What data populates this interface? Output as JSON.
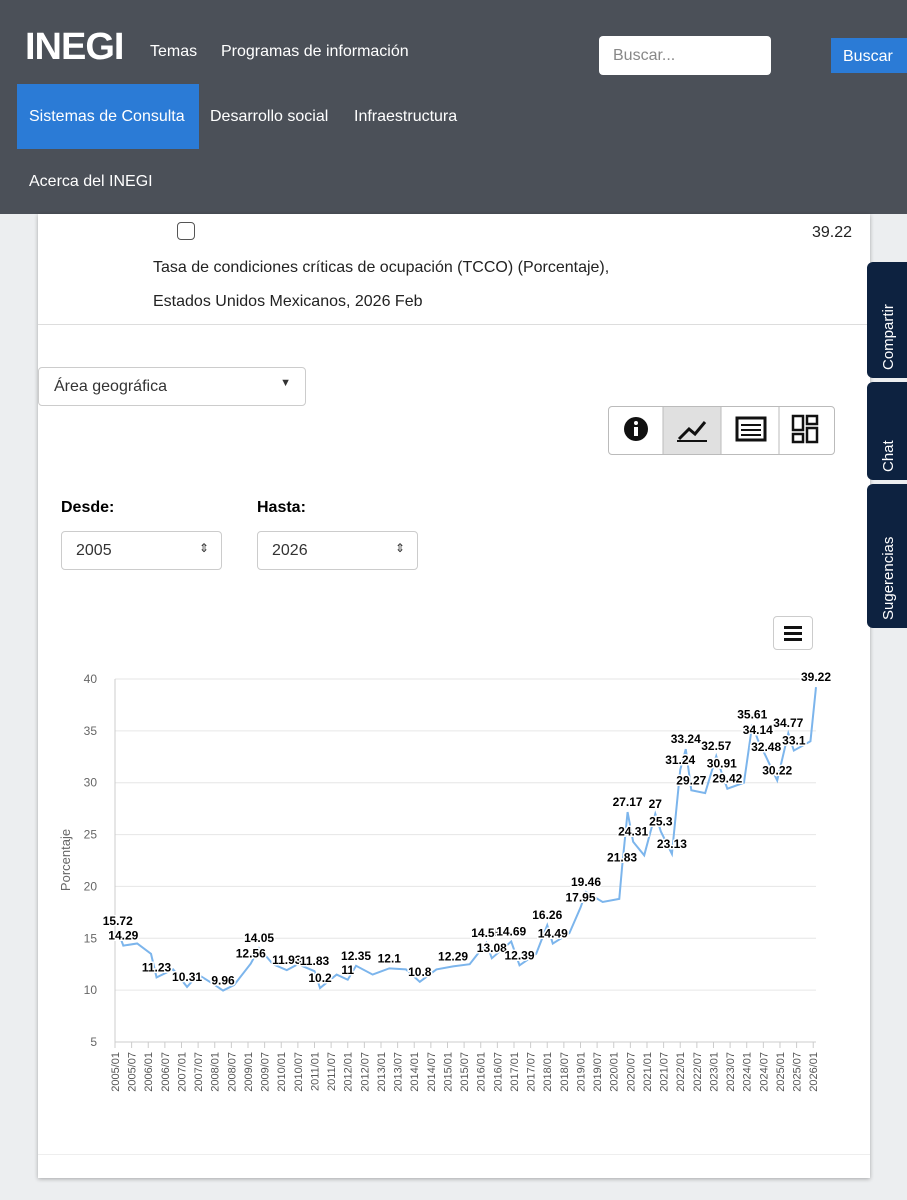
{
  "header": {
    "logo": "INEGI",
    "nav": [
      "Temas",
      "Programas de información",
      "Sistemas de Consulta",
      "Desarrollo social",
      "Infraestructura",
      "Acerca del INEGI"
    ],
    "search_placeholder": "Buscar...",
    "search_button": "Buscar"
  },
  "side_tabs": [
    "Compartir",
    "Chat",
    "Sugerencias"
  ],
  "indicator": {
    "value": "39.22",
    "description": [
      "Tasa de condiciones críticas de ocupación (TCCO) (Porcentaje),",
      "Estados Unidos Mexicanos, 2026 Feb"
    ]
  },
  "filters": {
    "area": "Área geográfica",
    "from_label": "Desde:",
    "from_value": "2005",
    "to_label": "Hasta:",
    "to_value": "2026"
  },
  "chart_data": {
    "type": "line",
    "ylabel": "Porcentaje",
    "ylim": [
      5,
      40
    ],
    "yticks": [
      5,
      10,
      15,
      20,
      25,
      30,
      35,
      40
    ],
    "grid": true,
    "xlim": [
      "2005/01",
      "2026/02"
    ],
    "xticks": [
      "2005/01",
      "2005/07",
      "2006/01",
      "2006/07",
      "2007/01",
      "2007/07",
      "2008/01",
      "2008/07",
      "2009/01",
      "2009/07",
      "2010/01",
      "2010/07",
      "2011/01",
      "2011/07",
      "2012/01",
      "2012/07",
      "2013/01",
      "2013/07",
      "2014/01",
      "2014/07",
      "2015/01",
      "2015/07",
      "2016/01",
      "2016/07",
      "2017/01",
      "2017/07",
      "2018/01",
      "2018/07",
      "2019/01",
      "2019/07",
      "2020/01",
      "2020/07",
      "2021/01",
      "2021/07",
      "2022/01",
      "2022/07",
      "2023/01",
      "2023/07",
      "2024/01",
      "2024/07",
      "2025/01",
      "2025/07",
      "2026/01"
    ],
    "series": [
      {
        "color": "#7cb5ec",
        "x": [
          "2005/02",
          "2005/04",
          "2005/09",
          "2006/02",
          "2006/04",
          "2006/10",
          "2007/03",
          "2007/07",
          "2008/01",
          "2008/04",
          "2008/08",
          "2009/02",
          "2009/05",
          "2009/10",
          "2010/03",
          "2010/07",
          "2011/01",
          "2011/03",
          "2011/09",
          "2012/01",
          "2012/04",
          "2012/10",
          "2013/04",
          "2013/10",
          "2014/03",
          "2014/09",
          "2015/03",
          "2015/09",
          "2016/03",
          "2016/05",
          "2016/12",
          "2017/03",
          "2017/09",
          "2018/01",
          "2018/03",
          "2018/09",
          "2019/01",
          "2019/03",
          "2019/09",
          "2020/03",
          "2020/04",
          "2020/06",
          "2020/08",
          "2020/12",
          "2021/04",
          "2021/06",
          "2021/10",
          "2022/01",
          "2022/03",
          "2022/05",
          "2022/10",
          "2023/02",
          "2023/04",
          "2023/06",
          "2023/12",
          "2024/03",
          "2024/05",
          "2024/08",
          "2024/12",
          "2025/04",
          "2025/06",
          "2025/12",
          "2026/02"
        ],
        "values": [
          15.72,
          14.29,
          14.5,
          13.5,
          11.23,
          12.0,
          10.31,
          11.5,
          10.5,
          9.96,
          10.5,
          12.56,
          14.05,
          12.5,
          11.93,
          12.5,
          11.83,
          10.2,
          11.5,
          11,
          12.35,
          11.5,
          12.1,
          12.0,
          10.8,
          12.0,
          12.29,
          12.5,
          14.55,
          13.08,
          14.69,
          12.39,
          13.5,
          16.26,
          14.49,
          15.5,
          17.95,
          19.46,
          18.5,
          18.8,
          21.83,
          27.17,
          24.31,
          23,
          27,
          25.3,
          23.13,
          31.24,
          33.24,
          29.27,
          29,
          32.57,
          30.91,
          29.42,
          30,
          35.61,
          34.14,
          32.48,
          30.22,
          34.77,
          33.1,
          34,
          39.22
        ],
        "value_labels": [
          "15.72",
          "14.29",
          null,
          null,
          "11.23",
          null,
          "10.31",
          null,
          null,
          "9.96",
          null,
          "12.56",
          "14.05",
          null,
          "11.93",
          null,
          "11.83",
          "10.2",
          null,
          "11",
          "12.35",
          null,
          "12.1",
          null,
          "10.8",
          null,
          "12.29",
          null,
          "14.55",
          "13.08",
          "14.69",
          "12.39",
          null,
          "16.26",
          "14.49",
          null,
          "17.95",
          "19.46",
          null,
          null,
          "21.83",
          "27.17",
          "24.31",
          null,
          "27",
          "25.3",
          "23.13",
          "31.24",
          "33.24",
          "29.27",
          null,
          "32.57",
          "30.91",
          "29.42",
          null,
          "35.61",
          "34.14",
          "32.48",
          "30.22",
          "34.77",
          "33.1",
          null,
          "39.22"
        ]
      }
    ]
  }
}
